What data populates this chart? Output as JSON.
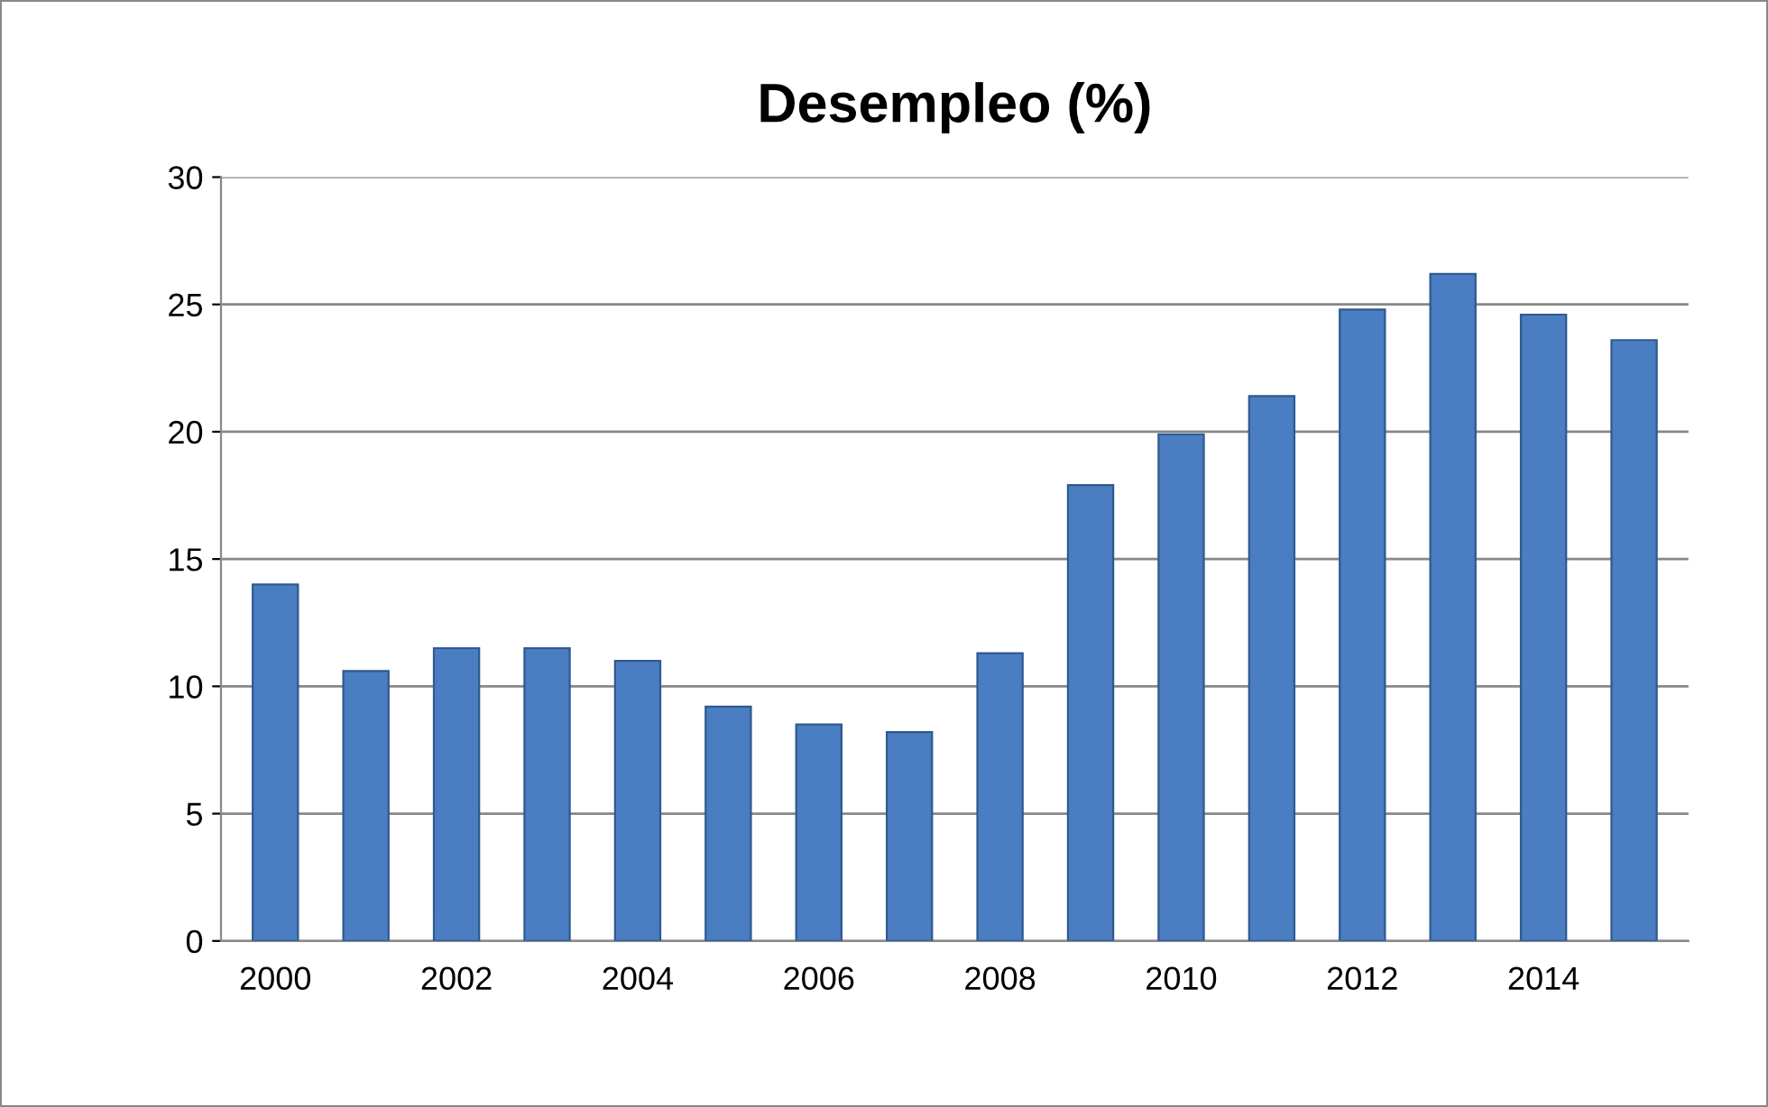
{
  "chart_data": {
    "type": "bar",
    "title": "Desempleo (%)",
    "categories": [
      "2000",
      null,
      "2002",
      null,
      "2004",
      null,
      "2006",
      null,
      "2008",
      null,
      "2010",
      null,
      "2012",
      null,
      "2014",
      null
    ],
    "values": [
      14.0,
      10.6,
      11.5,
      11.5,
      11.0,
      9.2,
      8.5,
      8.2,
      11.3,
      17.9,
      19.9,
      21.4,
      24.8,
      26.2,
      24.6,
      23.6
    ],
    "color": "#4a7dc1",
    "ylim": [
      0,
      30
    ],
    "yticks": [
      0,
      5,
      10,
      15,
      20,
      25,
      30
    ],
    "grid": "y",
    "legend": false
  }
}
